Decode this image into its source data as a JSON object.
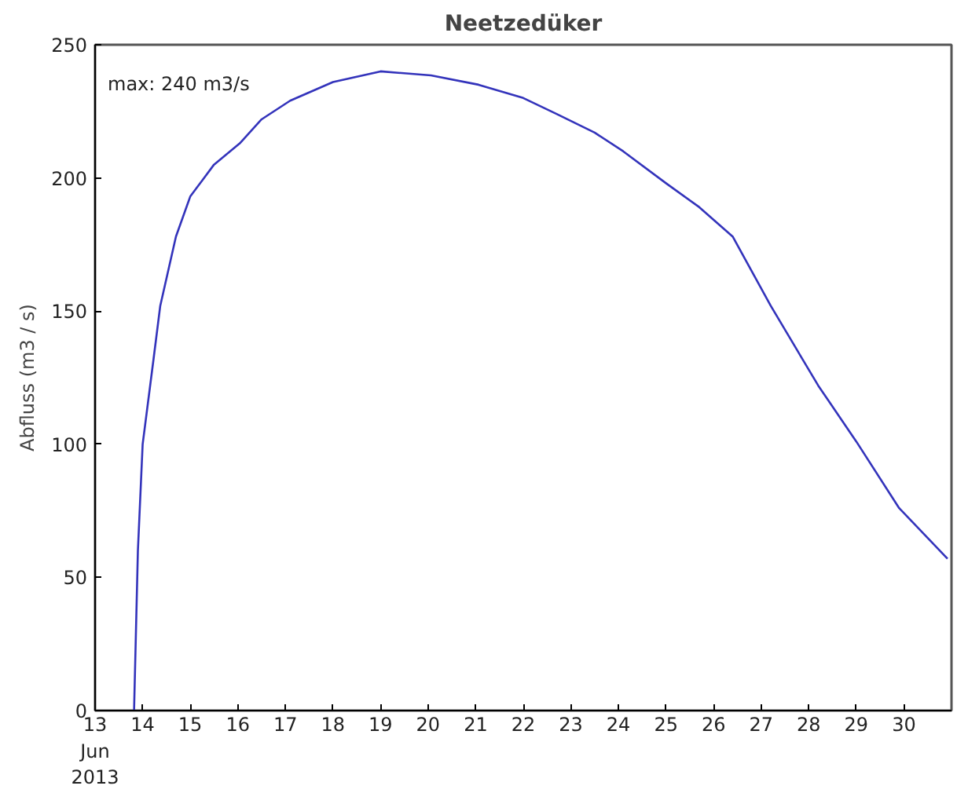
{
  "chart_data": {
    "type": "line",
    "title": "Neetzedüker",
    "ylabel": "Abfluss (m3 / s)",
    "annotations": [
      "max: 240 m3/s"
    ],
    "x": [
      "2013-06-13T19:40",
      "2013-06-13T21:36",
      "2013-06-14T00:00",
      "2013-06-14T05:30",
      "2013-06-14T08:53",
      "2013-06-14T16:48",
      "2013-06-15T00:00",
      "2013-06-15T12:00",
      "2013-06-16T01:00",
      "2013-06-16T12:00",
      "2013-06-17T02:24",
      "2013-06-18T00:00",
      "2013-06-19T00:00",
      "2013-06-20T01:26",
      "2013-06-21T01:26",
      "2013-06-22T00:00",
      "2013-06-22T16:48",
      "2013-06-23T12:00",
      "2013-06-24T02:24",
      "2013-06-25T00:00",
      "2013-06-25T16:48",
      "2013-06-26T09:36",
      "2013-06-27T04:48",
      "2013-06-28T04:48",
      "2013-06-29T00:00",
      "2013-06-29T21:36",
      "2013-06-30T22:00"
    ],
    "series": [
      {
        "color": "#3333bb",
        "values": [
          0,
          60,
          100,
          132,
          152,
          178,
          193,
          205,
          213,
          222,
          229,
          236,
          240,
          238.5,
          235,
          230,
          224,
          217,
          210,
          198,
          189,
          178,
          152,
          122,
          101,
          76,
          57
        ]
      }
    ],
    "xlim": [
      "2013-06-13",
      "2013-07-01"
    ],
    "xticks": [
      {
        "value": "2013-06-13",
        "label": "13\nJun\n2013"
      },
      {
        "value": "2013-06-14",
        "label": "14"
      },
      {
        "value": "2013-06-15",
        "label": "15"
      },
      {
        "value": "2013-06-16",
        "label": "16"
      },
      {
        "value": "2013-06-17",
        "label": "17"
      },
      {
        "value": "2013-06-18",
        "label": "18"
      },
      {
        "value": "2013-06-19",
        "label": "19"
      },
      {
        "value": "2013-06-20",
        "label": "20"
      },
      {
        "value": "2013-06-21",
        "label": "21"
      },
      {
        "value": "2013-06-22",
        "label": "22"
      },
      {
        "value": "2013-06-23",
        "label": "23"
      },
      {
        "value": "2013-06-24",
        "label": "24"
      },
      {
        "value": "2013-06-25",
        "label": "25"
      },
      {
        "value": "2013-06-26",
        "label": "26"
      },
      {
        "value": "2013-06-27",
        "label": "27"
      },
      {
        "value": "2013-06-28",
        "label": "28"
      },
      {
        "value": "2013-06-29",
        "label": "29"
      },
      {
        "value": "2013-06-30",
        "label": "30"
      }
    ],
    "ylim": [
      0,
      250
    ],
    "yticks": [
      0,
      50,
      100,
      150,
      200,
      250
    ],
    "grid": false,
    "marker": "none",
    "line_style": "solid"
  }
}
